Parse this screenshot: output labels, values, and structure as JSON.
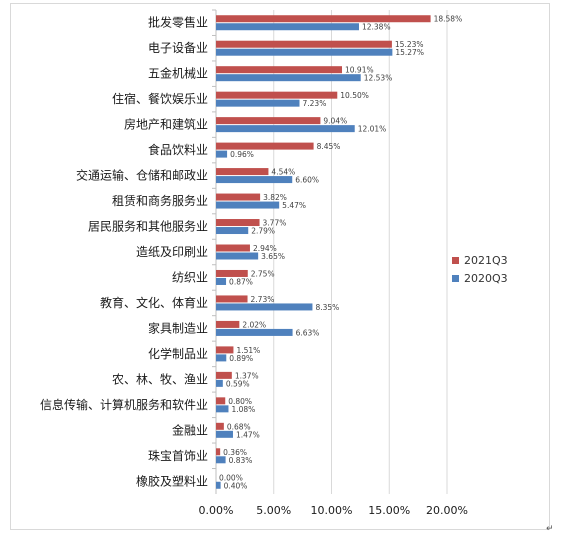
{
  "chart_data": {
    "type": "bar",
    "orientation": "horizontal",
    "categories": [
      "批发零售业",
      "电子设备业",
      "五金机械业",
      "住宿、餐饮娱乐业",
      "房地产和建筑业",
      "食品饮料业",
      "交通运输、仓储和邮政业",
      "租赁和商务服务业",
      "居民服务和其他服务业",
      "造纸及印刷业",
      "纺织业",
      "教育、文化、体育业",
      "家具制造业",
      "化学制品业",
      "农、林、牧、渔业",
      "信息传输、计算机服务和软件业",
      "金融业",
      "珠宝首饰业",
      "橡胶及塑料业"
    ],
    "series": [
      {
        "name": "2021Q3",
        "color": "#c0504d",
        "values": [
          18.58,
          15.23,
          10.91,
          10.5,
          9.04,
          8.45,
          4.54,
          3.82,
          3.77,
          2.94,
          2.75,
          2.73,
          2.02,
          1.51,
          1.37,
          0.8,
          0.68,
          0.36,
          0.0
        ],
        "labels": [
          "18.58%",
          "15.23%",
          "10.91%",
          "10.50%",
          "9.04%",
          "8.45%",
          "4.54%",
          "3.82%",
          "3.77%",
          "2.94%",
          "2.75%",
          "2.73%",
          "2.02%",
          "1.51%",
          "1.37%",
          "0.80%",
          "0.68%",
          "0.36%",
          "0.00%"
        ]
      },
      {
        "name": "2020Q3",
        "color": "#4f81bd",
        "values": [
          12.38,
          15.27,
          12.53,
          7.23,
          12.01,
          0.96,
          6.6,
          5.47,
          2.79,
          3.65,
          0.87,
          8.35,
          6.63,
          0.89,
          0.59,
          1.08,
          1.47,
          0.83,
          0.4
        ],
        "labels": [
          "12.38%",
          "15.27%",
          "12.53%",
          "7.23%",
          "12.01%",
          "0.96%",
          "6.60%",
          "5.47%",
          "2.79%",
          "3.65%",
          "0.87%",
          "8.35%",
          "6.63%",
          "0.89%",
          "0.59%",
          "1.08%",
          "1.47%",
          "0.83%",
          "0.40%"
        ]
      }
    ],
    "xlim": [
      0,
      20
    ],
    "xticks": [
      0,
      5,
      10,
      15,
      20
    ],
    "xtick_labels": [
      "0.00%",
      "5.00%",
      "10.00%",
      "15.00%",
      "20.00%"
    ],
    "grid": true,
    "legend_position": "right"
  }
}
